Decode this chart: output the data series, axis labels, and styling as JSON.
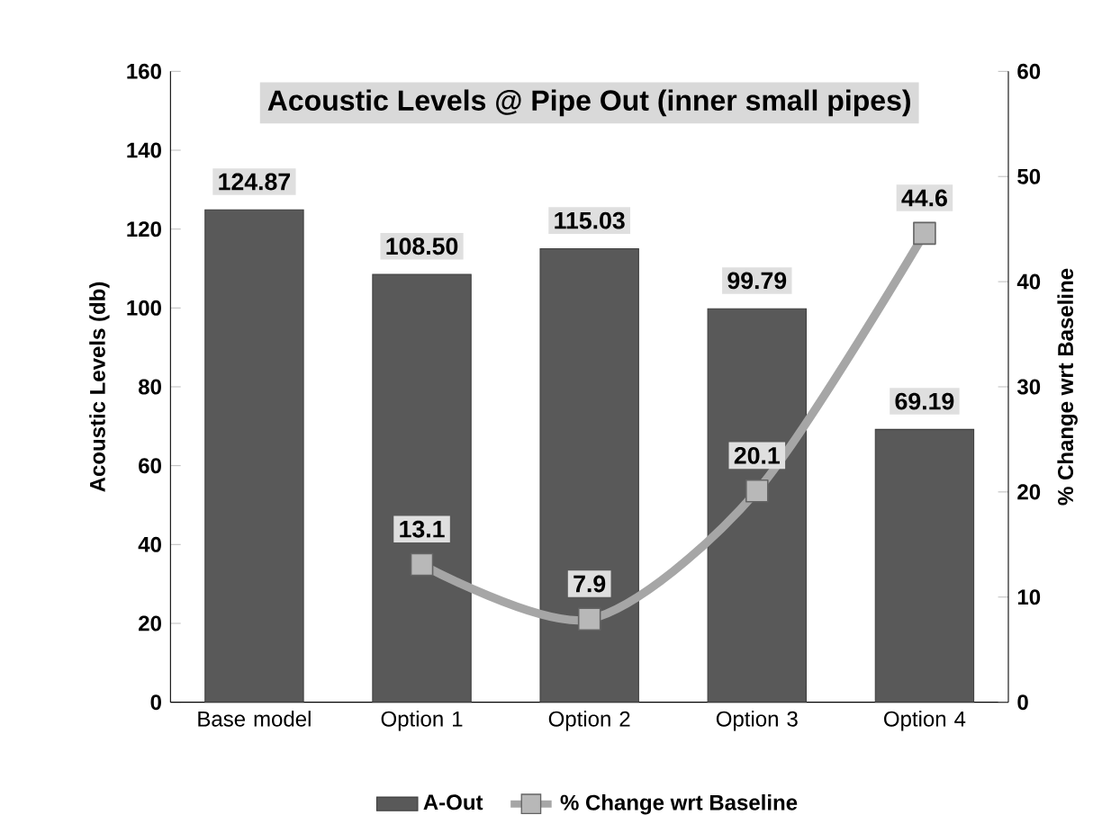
{
  "chart_data": {
    "type": "bar",
    "title": "Acoustic Levels @ Pipe Out (inner small pipes)",
    "ylabel": "Acoustic Levels (db)",
    "y2label": "% Change wrt Baseline",
    "categories": [
      "Base model",
      "Option 1",
      "Option 2",
      "Option 3",
      "Option 4"
    ],
    "series": [
      {
        "name": "A-Out",
        "color": "#595959",
        "values": [
          124.87,
          108.5,
          115.03,
          99.79,
          69.19
        ],
        "value_labels": [
          "124.87",
          "108.50",
          "115.03",
          "99.79",
          "69.19"
        ]
      },
      {
        "name": "% Change wrt Baseline",
        "type": "line",
        "axis": "y2",
        "color": "#a6a6a6",
        "marker": "square",
        "line_style": "solid",
        "values": [
          null,
          13.1,
          7.9,
          20.1,
          44.6
        ],
        "value_labels": [
          null,
          "13.1",
          "7.9",
          "20.1",
          "44.6"
        ]
      }
    ],
    "ylim": [
      0,
      160
    ],
    "yticks": [
      0,
      20,
      40,
      60,
      80,
      100,
      120,
      140,
      160
    ],
    "y2lim": [
      0,
      60
    ],
    "y2ticks": [
      0,
      10,
      20,
      30,
      40,
      50,
      60
    ],
    "legend": "bottom",
    "grid": false
  }
}
